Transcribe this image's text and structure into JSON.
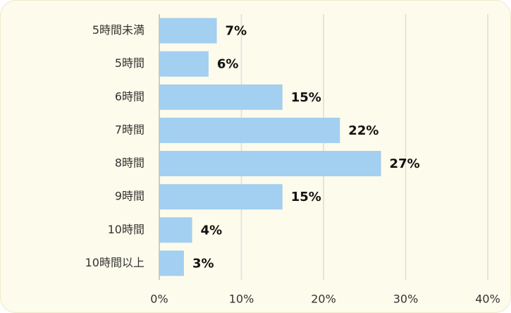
{
  "chart_data": {
    "type": "bar",
    "orientation": "horizontal",
    "categories": [
      "5時間未満",
      "5時間",
      "6時間",
      "7時間",
      "8時間",
      "9時間",
      "10時間",
      "10時間以上"
    ],
    "values": [
      7,
      6,
      15,
      22,
      27,
      15,
      4,
      3
    ],
    "value_labels": [
      "7%",
      "6%",
      "15%",
      "22%",
      "27%",
      "15%",
      "4%",
      "3%"
    ],
    "color": "#a3cff0",
    "xlim": [
      0,
      40
    ],
    "xticks": [
      {
        "value": 0,
        "label": "0%"
      },
      {
        "value": 10,
        "label": "10%"
      },
      {
        "value": 20,
        "label": "20%"
      },
      {
        "value": 30,
        "label": "30%"
      },
      {
        "value": 40,
        "label": "40%"
      }
    ],
    "grid": true
  }
}
